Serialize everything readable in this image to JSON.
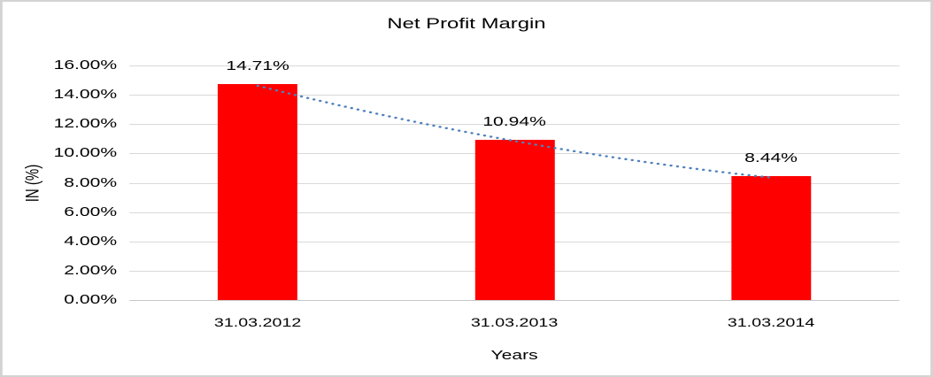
{
  "chart_data": {
    "type": "bar",
    "title": "Net Profit Margin",
    "categories": [
      "31.03.2012",
      "31.03.2013",
      "31.03.2014"
    ],
    "values": [
      14.71,
      10.94,
      8.44
    ],
    "data_labels": [
      "14.71%",
      "10.94%",
      "8.44%"
    ],
    "xlabel": "Years",
    "ylabel": "IN (%)",
    "ylim": [
      0,
      16
    ],
    "ytick_labels": [
      "16.00%",
      "14.00%",
      "12.00%",
      "10.00%",
      "8.00%",
      "6.00%",
      "4.00%",
      "2.00%",
      "0.00%"
    ],
    "ytick_values": [
      16,
      14,
      12,
      10,
      8,
      6,
      4,
      2,
      0
    ],
    "grid": true,
    "legend": "none",
    "bar_color": "#ff0000",
    "trendline": {
      "type": "polynomial",
      "style": "dotted",
      "color": "#4f81bd"
    },
    "colors": {
      "gridline": "#d9d9d9",
      "axis_line": "#c8c8c8",
      "text": "#000000",
      "background": "#ffffff",
      "frame_border": "#d3d3d3"
    }
  }
}
